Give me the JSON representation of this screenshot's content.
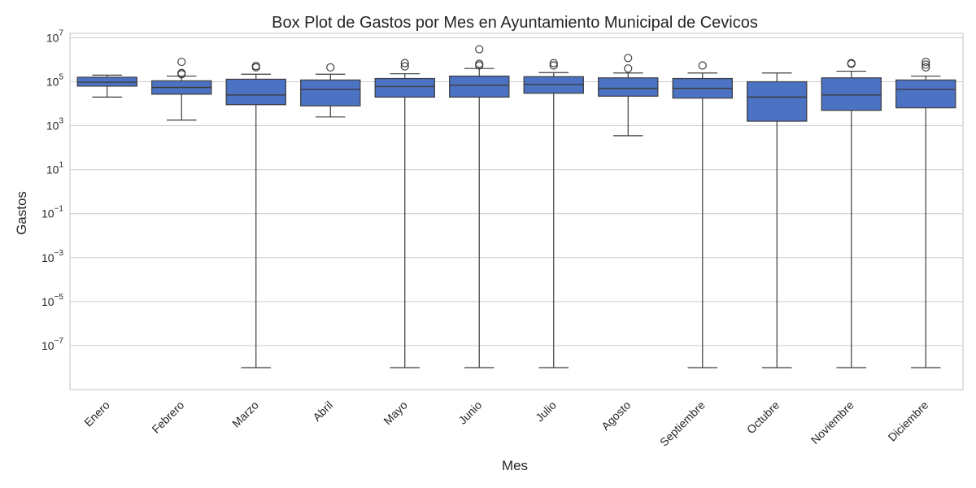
{
  "chart_data": {
    "type": "box",
    "title": "Box Plot de Gastos por Mes en Ayuntamiento Municipal de Cevicos",
    "xlabel": "Mes",
    "ylabel": "Gastos",
    "yscale": "log",
    "ylim_exponent": [
      -9,
      7.2
    ],
    "ytick_exponents": [
      -7,
      -5,
      -3,
      -1,
      1,
      3,
      5,
      7
    ],
    "grid": true,
    "color": "#4c72c4",
    "categories": [
      "Enero",
      "Febrero",
      "Marzo",
      "Abril",
      "Mayo",
      "Junio",
      "Julio",
      "Agosto",
      "Septiembre",
      "Octubre",
      "Noviembre",
      "Diciembre"
    ],
    "boxes": [
      {
        "whislo": 20000,
        "q1": 63000,
        "med": 95000,
        "q3": 160000,
        "whishi": 200000,
        "fliers": []
      },
      {
        "whislo": 1800,
        "q1": 27000,
        "med": 55000,
        "q3": 110000,
        "whishi": 180000,
        "fliers": [
          220000,
          250000,
          800000
        ]
      },
      {
        "whislo": 1e-08,
        "q1": 9000,
        "med": 25000,
        "q3": 130000,
        "whishi": 220000,
        "fliers": [
          450000,
          520000
        ]
      },
      {
        "whislo": 2500,
        "q1": 8000,
        "med": 45000,
        "q3": 120000,
        "whishi": 220000,
        "fliers": [
          450000
        ]
      },
      {
        "whislo": 1e-08,
        "q1": 20000,
        "med": 60000,
        "q3": 140000,
        "whishi": 230000,
        "fliers": [
          500000,
          700000
        ]
      },
      {
        "whislo": 1e-08,
        "q1": 20000,
        "med": 70000,
        "q3": 180000,
        "whishi": 400000,
        "fliers": [
          550000,
          650000,
          3000000
        ]
      },
      {
        "whislo": 1e-08,
        "q1": 30000,
        "med": 75000,
        "q3": 170000,
        "whishi": 260000,
        "fliers": [
          550000,
          700000
        ]
      },
      {
        "whislo": 350,
        "q1": 22000,
        "med": 50000,
        "q3": 150000,
        "whishi": 250000,
        "fliers": [
          400000,
          1200000
        ]
      },
      {
        "whislo": 1e-08,
        "q1": 18000,
        "med": 50000,
        "q3": 140000,
        "whishi": 250000,
        "fliers": [
          550000
        ]
      },
      {
        "whislo": 1e-08,
        "q1": 1600,
        "med": 20000,
        "q3": 100000,
        "whishi": 250000,
        "fliers": []
      },
      {
        "whislo": 1e-08,
        "q1": 5000,
        "med": 25000,
        "q3": 150000,
        "whishi": 300000,
        "fliers": [
          650000,
          700000
        ]
      },
      {
        "whislo": 1e-08,
        "q1": 6500,
        "med": 45000,
        "q3": 120000,
        "whishi": 180000,
        "fliers": [
          450000,
          600000,
          800000
        ]
      }
    ]
  }
}
